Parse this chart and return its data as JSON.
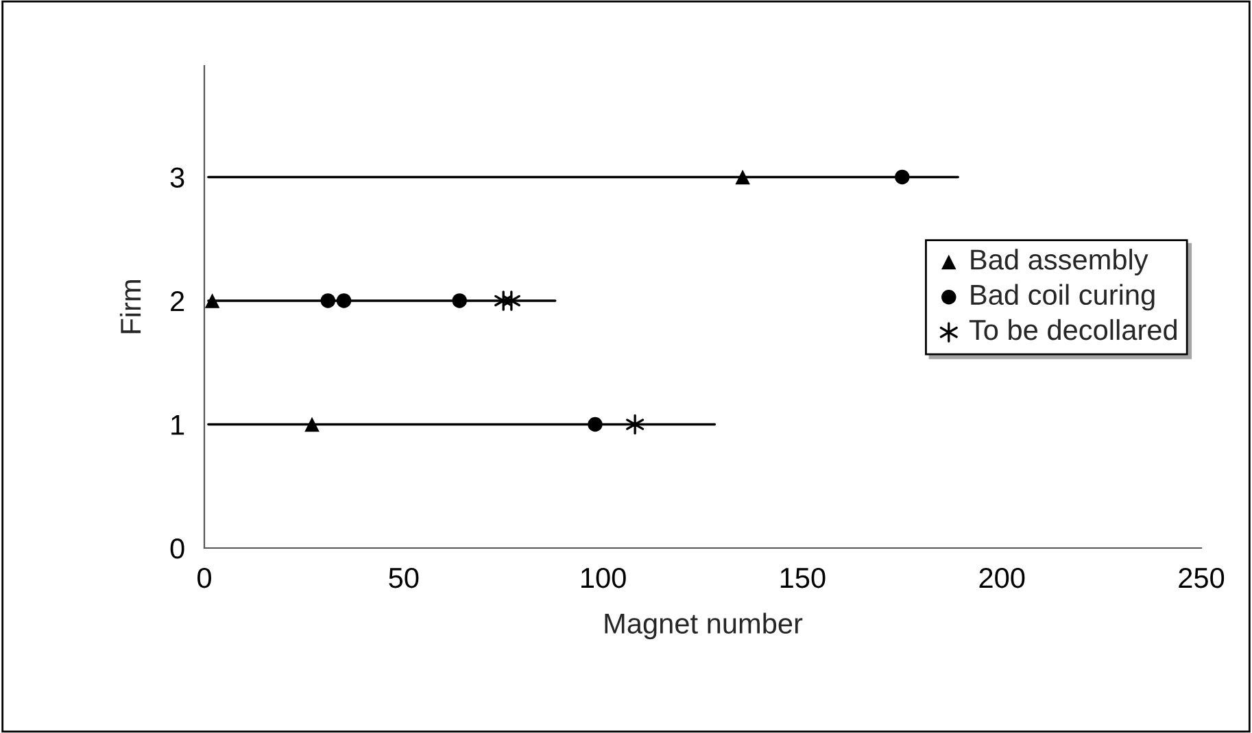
{
  "chart_data": {
    "type": "scatter",
    "xlabel": "Magnet number",
    "ylabel": "Firm",
    "xlim": [
      0,
      250
    ],
    "xticks": [
      0,
      50,
      100,
      150,
      200,
      250
    ],
    "ylim": [
      0,
      3.9
    ],
    "yticks": [
      0,
      1,
      2,
      3
    ],
    "grid": false,
    "legend": "right",
    "series": [
      {
        "type": "line",
        "color": "#000000",
        "x": [
          1,
          189
        ],
        "values": [
          3,
          3
        ],
        "marker": "none"
      },
      {
        "type": "line",
        "color": "#000000",
        "x": [
          1,
          88
        ],
        "values": [
          2,
          2
        ],
        "marker": "none"
      },
      {
        "type": "line",
        "color": "#000000",
        "x": [
          1,
          128
        ],
        "values": [
          1,
          1
        ],
        "marker": "none"
      },
      {
        "name": "Bad assembly",
        "color": "#000000",
        "marker": "triangle",
        "x": [
          135,
          2,
          27
        ],
        "values": [
          3,
          2,
          1
        ]
      },
      {
        "name": "Bad coil curing",
        "color": "#000000",
        "marker": "circle",
        "x": [
          175,
          31,
          35,
          64,
          98
        ],
        "values": [
          3,
          2,
          2,
          2,
          1
        ]
      },
      {
        "name": "To be decollared",
        "color": "#000000",
        "marker": "cross",
        "x": [
          75,
          77,
          108
        ],
        "values": [
          2,
          2,
          1
        ]
      }
    ]
  }
}
